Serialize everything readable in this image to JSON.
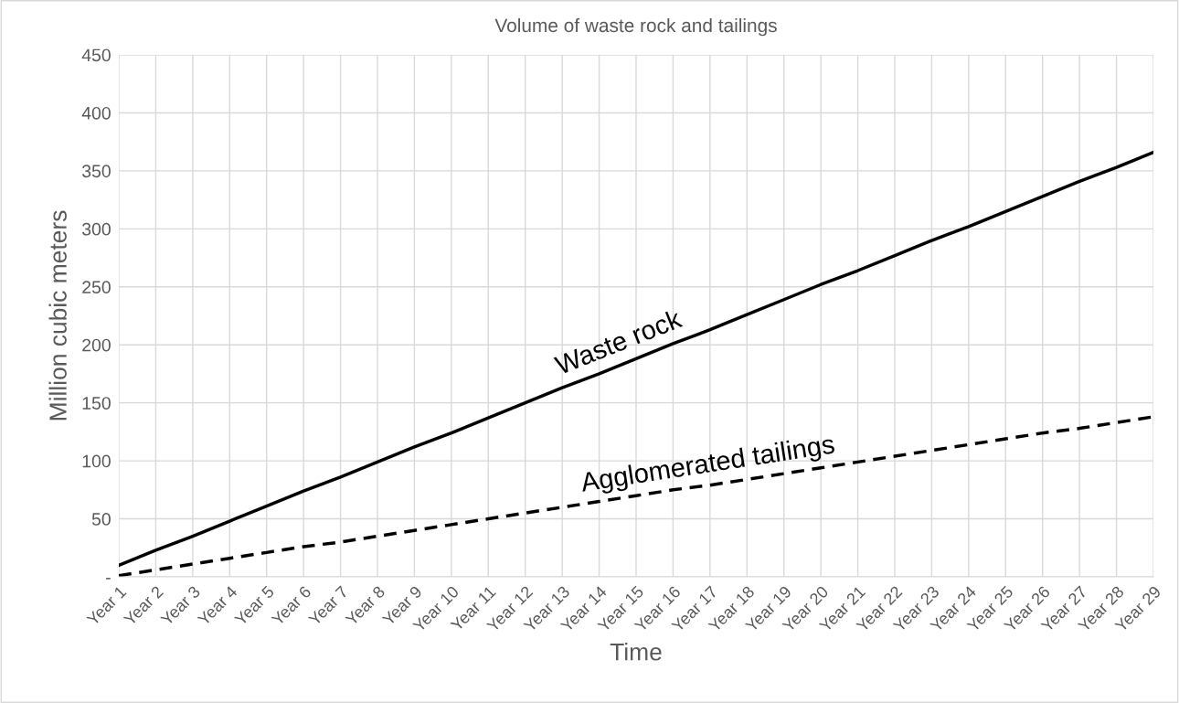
{
  "chart_data": {
    "type": "line",
    "title": "Volume of waste rock and tailings",
    "xlabel": "Time",
    "ylabel": "Million cubic meters",
    "categories": [
      "Year 1",
      "Year 2",
      "Year 3",
      "Year 4",
      "Year 5",
      "Year 6",
      "Year 7",
      "Year 8",
      "Year 9",
      "Year 10",
      "Year 11",
      "Year 12",
      "Year 13",
      "Year 14",
      "Year 15",
      "Year 16",
      "Year 17",
      "Year 18",
      "Year 19",
      "Year 20",
      "Year 21",
      "Year 22",
      "Year 23",
      "Year 24",
      "Year 25",
      "Year 26",
      "Year 27",
      "Year 28",
      "Year 29"
    ],
    "series": [
      {
        "name": "Waste rock",
        "color": "#000000",
        "line_style": "solid",
        "values": [
          10,
          23,
          35,
          48,
          61,
          74,
          86,
          99,
          112,
          124,
          137,
          150,
          163,
          175,
          188,
          201,
          213,
          226,
          239,
          252,
          264,
          277,
          290,
          302,
          315,
          328,
          341,
          353,
          366
        ]
      },
      {
        "name": "Agglomerated tailings",
        "color": "#000000",
        "line_style": "dashed",
        "values": [
          1,
          6,
          11,
          16,
          21,
          26,
          30,
          35,
          40,
          45,
          50,
          55,
          60,
          65,
          70,
          75,
          79,
          84,
          89,
          94,
          99,
          104,
          109,
          114,
          119,
          124,
          128,
          133,
          138
        ]
      }
    ],
    "ylim": [
      0,
      450
    ],
    "yticks": [
      {
        "value": 0,
        "label": "-"
      },
      50,
      100,
      150,
      200,
      250,
      300,
      350,
      400,
      450
    ],
    "grid": true,
    "marker": "none"
  }
}
